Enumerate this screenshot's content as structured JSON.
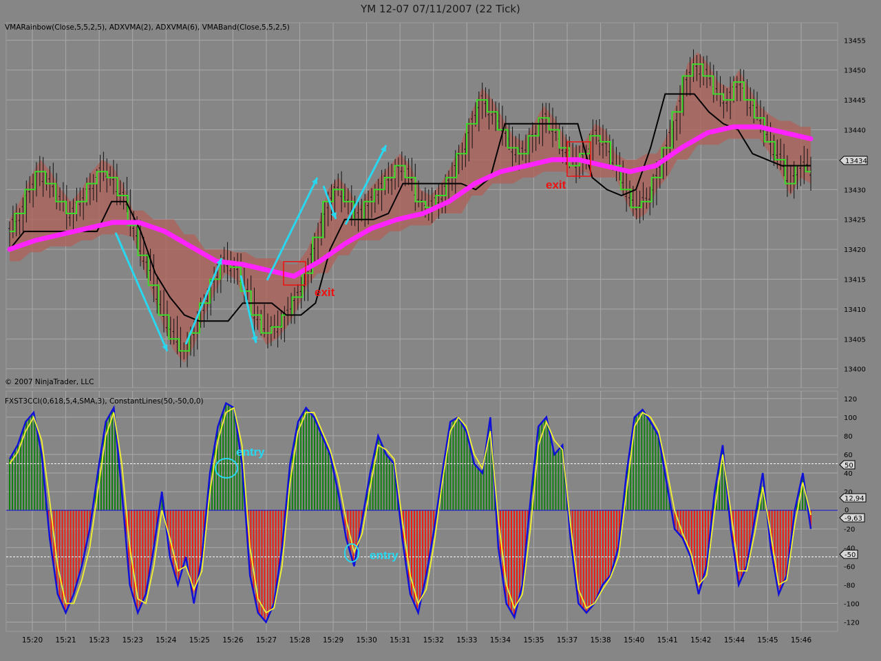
{
  "window": {
    "title": "YM 12-07  07/11/2007  (22 Tick)"
  },
  "price_panel": {
    "indicator_label": "VMARainbow(Close,5,5,2,5), ADXVMA(2), ADXVMA(6), VMABand(Close,5,5,2,5)",
    "copyright": "© 2007 NinjaTrader, LLC",
    "last_price_label": "13434",
    "annotations": {
      "exit_1": "exit",
      "exit_2": "exit"
    }
  },
  "cci_panel": {
    "indicator_label": "FXST3CCI(0,618,5,4,SMA,3), ConstantLines(50,-50,0,0)",
    "right_labels": {
      "plus_50": "50",
      "val_cci": "12,94",
      "zero": "0",
      "val_cci2": "-9,63",
      "minus_50": "-50"
    },
    "annotations": {
      "entry_1": "entry",
      "entry_2": "entry"
    }
  },
  "colors": {
    "background": "#868686",
    "grid": "#a9a9a9",
    "bars": "#101010",
    "vma_fast": "#3adc2a",
    "vma_slow": "#000000",
    "vma_band": "#ff24ff",
    "rainbow": "#b0605a",
    "cci_line": "#1010d8",
    "cci_signal": "#f2f232",
    "hist_pos": "#118011",
    "hist_neg": "#ee1a10",
    "arrow": "#28d8f0",
    "exit_text": "#ee1111",
    "entry_text": "#28d8f0"
  },
  "chart_data": [
    {
      "type": "line",
      "title": "YM 12-07  07/11/2007  (22 Tick)",
      "ylim": [
        13398,
        13457
      ],
      "y_ticks": [
        13400,
        13405,
        13410,
        13415,
        13420,
        13425,
        13430,
        13435,
        13440,
        13445,
        13450,
        13455
      ],
      "x_tick_labels": [
        "15:20",
        "15:21",
        "15:23",
        "15:23",
        "15:24",
        "15:25",
        "15:26",
        "15:27",
        "15:28",
        "15:29",
        "15:30",
        "15:31",
        "15:32",
        "15:33",
        "15:34",
        "15:35",
        "15:37",
        "15:38",
        "15:40",
        "15:41",
        "15:42",
        "15:44",
        "15:45",
        "15:46"
      ],
      "series": [
        {
          "name": "Close",
          "values": [
            13423,
            13426,
            13430,
            13433,
            13431,
            13428,
            13426,
            13428,
            13431,
            13433,
            13432,
            13429,
            13424,
            13419,
            13414,
            13409,
            13405,
            13403,
            13406,
            13411,
            13415,
            13418,
            13417,
            13413,
            13409,
            13406,
            13407,
            13409,
            13412,
            13416,
            13422,
            13428,
            13430,
            13428,
            13425,
            13428,
            13430,
            13432,
            13434,
            13432,
            13428,
            13427,
            13429,
            13432,
            13436,
            13441,
            13445,
            13443,
            13440,
            13437,
            13436,
            13439,
            13442,
            13440,
            13437,
            13434,
            13436,
            13439,
            13438,
            13434,
            13430,
            13427,
            13428,
            13432,
            13437,
            13443,
            13449,
            13451,
            13449,
            13446,
            13445,
            13448,
            13445,
            13442,
            13438,
            13435,
            13431,
            13434,
            13433
          ]
        },
        {
          "name": "ADXVMA(6)",
          "values": [
            13420,
            13423,
            13423,
            13423,
            13423,
            13423,
            13423,
            13428,
            13428,
            13423,
            13416,
            13412,
            13409,
            13408,
            13408,
            13408,
            13411,
            13411,
            13411,
            13409,
            13409,
            13411,
            13420,
            13425,
            13425,
            13425,
            13426,
            13431,
            13431,
            13431,
            13431,
            13431,
            13430,
            13432,
            13441,
            13441,
            13441,
            13441,
            13441,
            13441,
            13432,
            13430,
            13429,
            13430,
            13437,
            13446,
            13446,
            13446,
            13443,
            13441,
            13440,
            13436,
            13435,
            13434,
            13434,
            13434
          ]
        },
        {
          "name": "VMABand",
          "values": [
            13420,
            13421.5,
            13422.5,
            13423.5,
            13424.5,
            13424.5,
            13423,
            13420.5,
            13418,
            13417.5,
            13416.5,
            13415.5,
            13418,
            13421,
            13423.5,
            13425,
            13426,
            13428,
            13431,
            13433,
            13434,
            13435,
            13435,
            13434,
            13433,
            13434,
            13437,
            13439.5,
            13440.5,
            13440.5,
            13439.5,
            13438.5
          ]
        }
      ]
    },
    {
      "type": "area",
      "title": "FXST3CCI(0,618,5,4,SMA,3)",
      "ylim": [
        -130,
        128
      ],
      "y_ticks": [
        120,
        100,
        80,
        60,
        40,
        20,
        -20,
        -40,
        -60,
        -80,
        -100,
        -120
      ],
      "constant_lines": [
        50,
        -50,
        0
      ],
      "series": [
        {
          "name": "CCI",
          "values": [
            55,
            70,
            95,
            105,
            60,
            -30,
            -90,
            -110,
            -90,
            -60,
            -20,
            40,
            95,
            110,
            20,
            -80,
            -110,
            -90,
            -40,
            20,
            -50,
            -80,
            -50,
            -100,
            -50,
            40,
            90,
            115,
            110,
            50,
            -70,
            -110,
            -120,
            -100,
            -40,
            50,
            95,
            110,
            100,
            80,
            60,
            20,
            -30,
            -60,
            -10,
            40,
            80,
            60,
            50,
            -30,
            -90,
            -110,
            -70,
            -20,
            40,
            95,
            100,
            85,
            50,
            40,
            100,
            -40,
            -100,
            -115,
            -80,
            10,
            90,
            100,
            60,
            70,
            -30,
            -100,
            -110,
            -100,
            -80,
            -70,
            -40,
            40,
            100,
            108,
            95,
            80,
            30,
            -20,
            -30,
            -50,
            -90,
            -60,
            20,
            70,
            -20,
            -80,
            -60,
            -10,
            40,
            -40,
            -90,
            -70,
            0,
            40,
            -20
          ]
        },
        {
          "name": "Signal",
          "values": [
            50,
            62,
            85,
            100,
            75,
            10,
            -60,
            -100,
            -100,
            -75,
            -40,
            20,
            80,
            105,
            50,
            -40,
            -95,
            -100,
            -60,
            0,
            -30,
            -65,
            -60,
            -85,
            -65,
            20,
            75,
            105,
            110,
            70,
            -40,
            -95,
            -110,
            -105,
            -60,
            30,
            85,
            105,
            105,
            85,
            65,
            35,
            -10,
            -45,
            -25,
            25,
            70,
            65,
            55,
            -10,
            -70,
            -100,
            -85,
            -35,
            30,
            85,
            100,
            90,
            60,
            45,
            85,
            -10,
            -80,
            -105,
            -90,
            -20,
            70,
            95,
            75,
            65,
            -15,
            -85,
            -105,
            -100,
            -85,
            -72,
            -50,
            20,
            90,
            105,
            100,
            85,
            45,
            0,
            -25,
            -45,
            -80,
            -70,
            0,
            60,
            0,
            -65,
            -65,
            -25,
            25,
            -25,
            -80,
            -75,
            -15,
            30,
            -5
          ]
        }
      ]
    }
  ]
}
